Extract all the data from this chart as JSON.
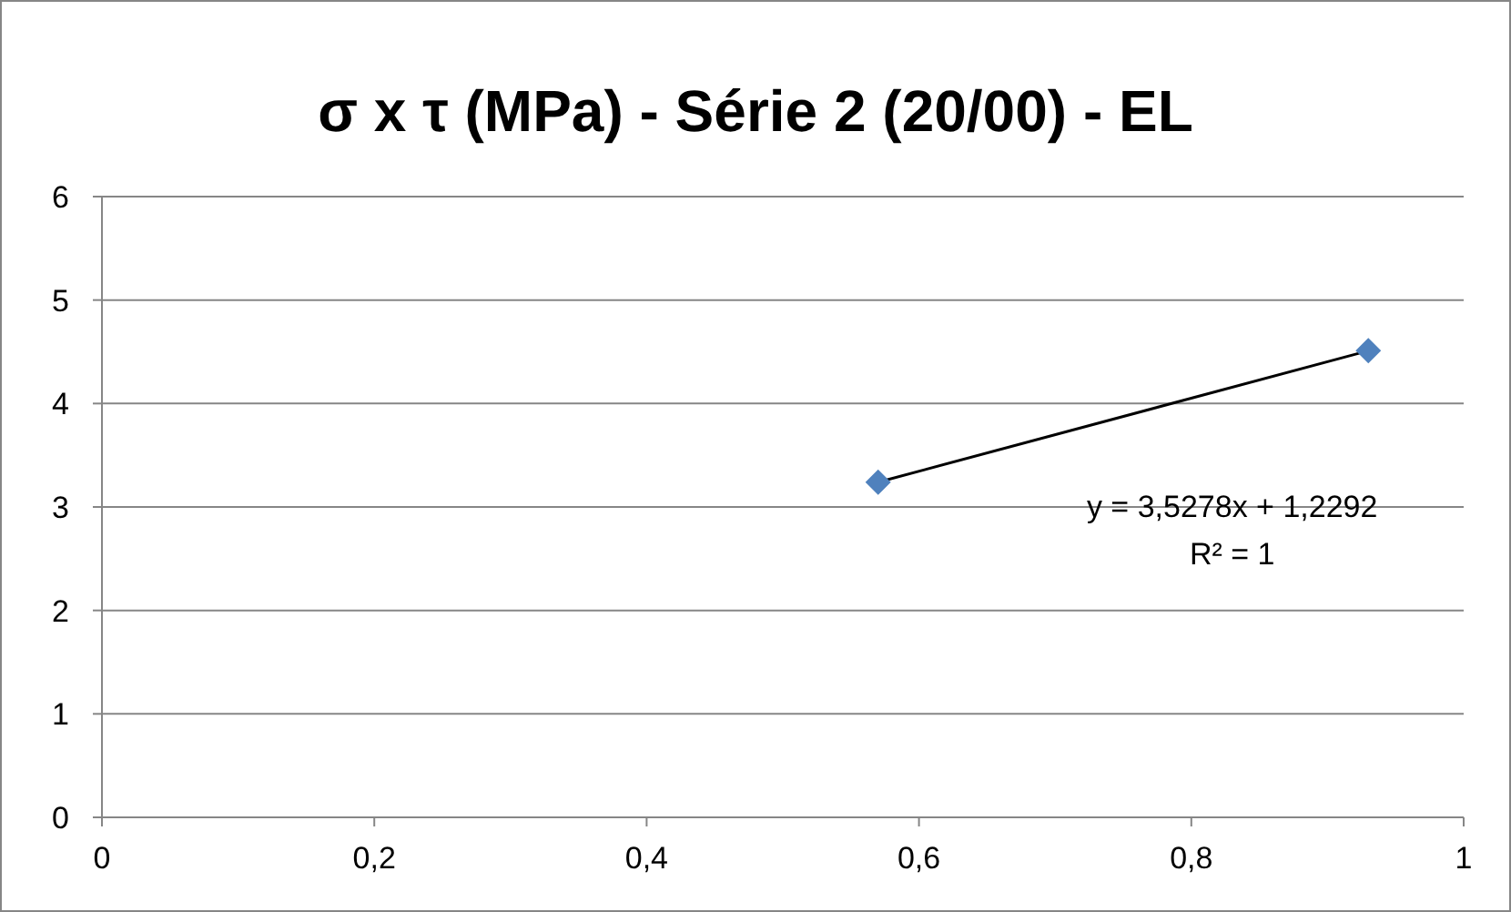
{
  "chart_data": {
    "type": "scatter",
    "title": "σ x τ (MPa) - Série 2 (20/00) - EL",
    "x": [
      0.57,
      0.93
    ],
    "series": [
      {
        "color": "#4f81bd",
        "values": [
          3.24,
          4.51
        ],
        "marker": "diamond"
      },
      {
        "type": "line",
        "color": "#000000",
        "values": [
          3.24,
          4.51
        ],
        "marker": "none"
      }
    ],
    "annotations": [
      "y = 3,5278x + 1,2292",
      "R² = 1"
    ],
    "xlim": [
      0,
      1
    ],
    "xticks": [
      0,
      {
        "value": 0.2,
        "label": "0,2"
      },
      {
        "value": 0.4,
        "label": "0,4"
      },
      {
        "value": 0.6,
        "label": "0,6"
      },
      {
        "value": 0.8,
        "label": "0,8"
      },
      1
    ],
    "ylim": [
      0,
      6
    ],
    "yticks": [
      0,
      1,
      2,
      3,
      4,
      5,
      6
    ],
    "grid": "y",
    "legend": false
  }
}
